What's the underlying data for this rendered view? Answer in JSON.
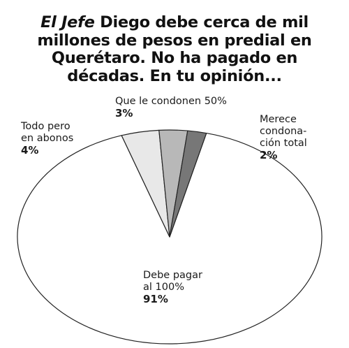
{
  "title": {
    "lead": "El Jefe",
    "rest": " Diego debe cerca de mil millones de pesos en predial en Querétaro. No ha pagado en décadas. En tu opinión..."
  },
  "chart_data": {
    "type": "pie",
    "start_direction": "clockwise from left of top",
    "slices": [
      {
        "label_lines": [
          "Debe pagar",
          "al 100%"
        ],
        "value": 91,
        "pct_label": "91%",
        "color": "#ffffff"
      },
      {
        "label_lines": [
          "Todo pero",
          "en abonos"
        ],
        "value": 4,
        "pct_label": "4%",
        "color": "#e8e8e8"
      },
      {
        "label_lines": [
          "Que le condonen 50%"
        ],
        "value": 3,
        "pct_label": "3%",
        "color": "#b8b8b8"
      },
      {
        "label_lines": [
          "Merece",
          "condona-",
          "ción total"
        ],
        "value": 2,
        "pct_label": "2%",
        "color": "#777777"
      }
    ],
    "outline_color": "#222222"
  }
}
